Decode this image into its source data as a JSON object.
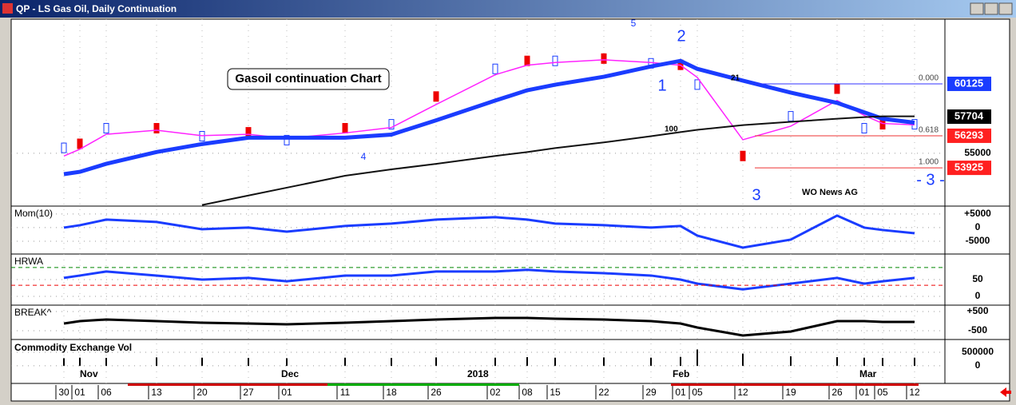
{
  "window": {
    "title": "QP - LS Gas Oil, Daily Continuation"
  },
  "price_panel": {
    "annotation": "Gasoil continuation Chart",
    "watermark": "WO News AG",
    "ylim": [
      51100,
      64900
    ],
    "yticks": [
      55000
    ],
    "price_labels": [
      {
        "value": 60125,
        "color": "#1a3cff"
      },
      {
        "value": 57704,
        "color": "#000000"
      },
      {
        "value": 56293,
        "color": "#ff2020"
      },
      {
        "value": 53925,
        "color": "#ff2020"
      }
    ],
    "fib_labels": [
      "0.000",
      "0.618",
      "1.000"
    ],
    "wave_labels": [
      "1",
      "2",
      "3",
      "4",
      "5",
      "- 3 -"
    ],
    "ma_labels": [
      "21",
      "100"
    ],
    "series": [
      {
        "name": "close",
        "color": "#000000",
        "values": [
          55400,
          55700,
          56850,
          56850,
          56260,
          56550,
          55970,
          56850,
          57140,
          59190,
          61230,
          61820,
          61820,
          61990,
          61640,
          61530,
          60070,
          54800,
          57730,
          59770,
          56850,
          57140,
          57140
        ]
      },
      {
        "name": "fast",
        "color": "#ff22ff",
        "values": [
          54800,
          55300,
          56400,
          56700,
          56300,
          56400,
          56100,
          56500,
          56900,
          58600,
          60800,
          61500,
          61700,
          61900,
          61700,
          61500,
          60600,
          56000,
          57000,
          58900,
          57800,
          57200,
          57100
        ]
      },
      {
        "name": "ma21",
        "color": "#1a3cff",
        "values": [
          53460,
          53630,
          54220,
          55090,
          55680,
          56150,
          56150,
          56150,
          56380,
          57430,
          58890,
          59650,
          60060,
          60650,
          61410,
          61820,
          61230,
          60360,
          59480,
          58720,
          58020,
          57550,
          57260
        ]
      },
      {
        "name": "ma100",
        "color": "#111111",
        "values": [
          null,
          null,
          null,
          null,
          51180,
          51880,
          52460,
          53340,
          53810,
          54220,
          54800,
          55090,
          55380,
          55800,
          56260,
          56560,
          56730,
          57080,
          57320,
          57550,
          57670,
          57730,
          57730
        ]
      }
    ]
  },
  "mom_panel": {
    "label": "Mom(10)",
    "ylim": [
      -9700,
      7900
    ],
    "yticks": [
      {
        "value": 5000,
        "label": "+5000"
      },
      0,
      -5000
    ],
    "values": [
      0,
      880,
      2940,
      2060,
      -590,
      0,
      -1470,
      590,
      1470,
      2940,
      3820,
      2940,
      1470,
      880,
      0,
      590,
      -2940,
      -7350,
      -4410,
      4410,
      0,
      -880,
      -2060
    ]
  },
  "hrw_panel": {
    "label": "HRWA",
    "ylim": [
      -26,
      126
    ],
    "yticks": [
      50,
      0
    ],
    "upper": 86,
    "lower": 33,
    "values": [
      55,
      62,
      74,
      62,
      50,
      55,
      45,
      62,
      62,
      74,
      74,
      79,
      74,
      69,
      62,
      50,
      38,
      21,
      38,
      55,
      38,
      45,
      55
    ]
  },
  "break_panel": {
    "label": "BREAK^",
    "ylim": [
      -958,
      833
    ],
    "yticks": [
      {
        "value": 500,
        "label": "+500"
      },
      -500
    ],
    "values": [
      -125,
      0,
      83,
      0,
      -83,
      -125,
      -167,
      -83,
      0,
      83,
      167,
      167,
      125,
      83,
      0,
      -125,
      -333,
      -750,
      -542,
      0,
      0,
      -42,
      -42
    ]
  },
  "vol_panel": {
    "label": "Commodity Exchange Vol",
    "ylim": [
      -650000,
      970000
    ],
    "yticks": [
      500000,
      0
    ],
    "values": [
      280000,
      300000,
      290000,
      310000,
      300000,
      290000,
      280000,
      300000,
      290000,
      310000,
      300000,
      320000,
      300000,
      310000,
      300000,
      330000,
      600000,
      450000,
      350000,
      320000,
      300000,
      290000,
      300000
    ]
  },
  "x_axis": {
    "dates": [
      "30",
      "01",
      "06",
      "13",
      "20",
      "27",
      "01",
      "11",
      "18",
      "26",
      "02",
      "08",
      "15",
      "22",
      "29",
      "01",
      "05",
      "12",
      "19",
      "26",
      "01",
      "05",
      "12"
    ],
    "months": [
      "Nov",
      "Dec",
      "2018",
      "Feb",
      "Mar"
    ]
  }
}
